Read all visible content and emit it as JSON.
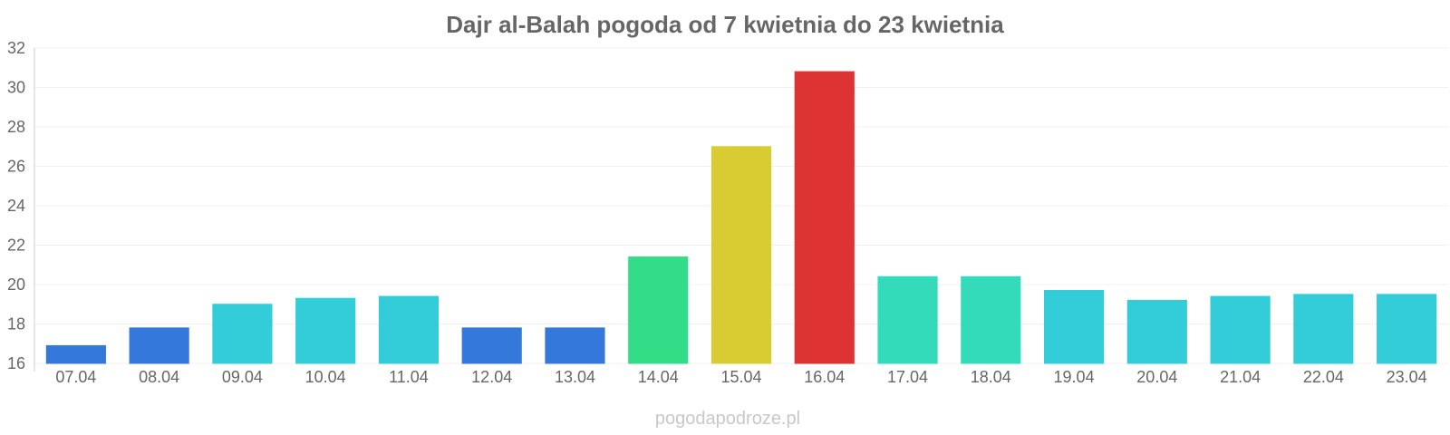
{
  "chart_data": {
    "type": "bar",
    "title": "Dajr al-Balah pogoda od 7 kwietnia do 23 kwietnia",
    "xlabel": "",
    "ylabel": "",
    "ylim": [
      16,
      32
    ],
    "yticks": [
      16,
      18,
      20,
      22,
      24,
      26,
      28,
      30,
      32
    ],
    "grid": true,
    "categories": [
      "07.04",
      "08.04",
      "09.04",
      "10.04",
      "11.04",
      "12.04",
      "13.04",
      "14.04",
      "15.04",
      "16.04",
      "17.04",
      "18.04",
      "19.04",
      "20.04",
      "21.04",
      "22.04",
      "23.04"
    ],
    "values": [
      16.9,
      17.8,
      19.0,
      19.3,
      19.4,
      17.8,
      17.8,
      21.4,
      27.0,
      30.8,
      20.4,
      20.4,
      19.7,
      19.2,
      19.4,
      19.5,
      19.5
    ],
    "colors": [
      "#3578dc",
      "#3578dc",
      "#33ccd9",
      "#33ccd9",
      "#33ccd9",
      "#3578dc",
      "#3578dc",
      "#33dd88",
      "#d9cc33",
      "#dd3333",
      "#33dbbb",
      "#33dbbb",
      "#33ccd9",
      "#33ccd9",
      "#33ccd9",
      "#33ccd9",
      "#33ccd9"
    ]
  },
  "watermark": "pogodapodroze.pl"
}
